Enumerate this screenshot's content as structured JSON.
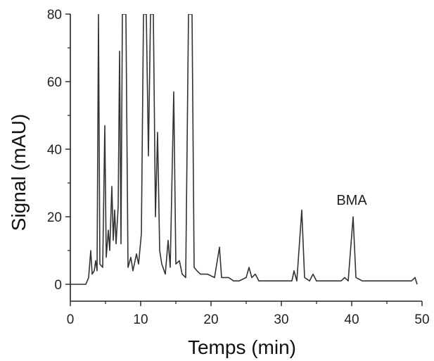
{
  "chart_data": {
    "type": "line",
    "title": "",
    "xlabel": "Temps (min)",
    "ylabel": "Signal (mAU)",
    "xlim": [
      0,
      50
    ],
    "ylim": [
      -5,
      80
    ],
    "x_ticks": [
      0,
      10,
      20,
      30,
      40,
      50
    ],
    "y_ticks": [
      0,
      20,
      40,
      60,
      80
    ],
    "grid": false,
    "legend": "none",
    "line_color": "#333333",
    "annotations": [
      {
        "text": "BMA",
        "x": 40.0,
        "y": 23.5
      }
    ],
    "series": [
      {
        "points": [
          [
            0,
            0
          ],
          [
            2.2,
            0
          ],
          [
            2.6,
            2
          ],
          [
            2.9,
            10
          ],
          [
            3.1,
            3
          ],
          [
            3.4,
            4
          ],
          [
            3.6,
            7
          ],
          [
            3.8,
            4
          ],
          [
            4.0,
            80
          ],
          [
            4.2,
            6
          ],
          [
            4.6,
            5
          ],
          [
            4.9,
            47
          ],
          [
            5.1,
            8
          ],
          [
            5.4,
            16
          ],
          [
            5.6,
            10
          ],
          [
            5.9,
            29
          ],
          [
            6.1,
            13
          ],
          [
            6.3,
            22
          ],
          [
            6.5,
            12
          ],
          [
            6.8,
            23
          ],
          [
            7.0,
            69
          ],
          [
            7.2,
            12
          ],
          [
            7.4,
            80
          ],
          [
            7.9,
            80
          ],
          [
            8.2,
            5
          ],
          [
            8.6,
            8
          ],
          [
            8.9,
            4
          ],
          [
            9.4,
            9
          ],
          [
            9.7,
            6
          ],
          [
            10.1,
            15
          ],
          [
            10.4,
            80
          ],
          [
            10.8,
            80
          ],
          [
            11.1,
            38
          ],
          [
            11.4,
            80
          ],
          [
            11.8,
            80
          ],
          [
            12.1,
            20
          ],
          [
            12.4,
            45
          ],
          [
            12.7,
            10
          ],
          [
            13.0,
            6
          ],
          [
            13.5,
            3
          ],
          [
            13.9,
            13
          ],
          [
            14.2,
            5
          ],
          [
            14.7,
            57
          ],
          [
            15.0,
            6
          ],
          [
            15.5,
            7
          ],
          [
            15.9,
            3
          ],
          [
            16.4,
            2
          ],
          [
            16.8,
            80
          ],
          [
            17.3,
            80
          ],
          [
            17.6,
            5
          ],
          [
            18.0,
            4
          ],
          [
            18.5,
            3
          ],
          [
            19.5,
            3
          ],
          [
            20.5,
            2
          ],
          [
            21.2,
            11
          ],
          [
            21.5,
            2
          ],
          [
            22.5,
            2
          ],
          [
            23.2,
            1
          ],
          [
            24.0,
            1
          ],
          [
            25.0,
            2
          ],
          [
            25.4,
            5
          ],
          [
            25.8,
            2
          ],
          [
            26.3,
            3
          ],
          [
            26.8,
            1
          ],
          [
            28.0,
            1
          ],
          [
            30.0,
            1
          ],
          [
            31.5,
            1
          ],
          [
            31.8,
            4
          ],
          [
            32.2,
            1
          ],
          [
            32.9,
            22
          ],
          [
            33.3,
            2
          ],
          [
            34.0,
            1
          ],
          [
            34.5,
            3
          ],
          [
            35.0,
            1
          ],
          [
            36.5,
            1
          ],
          [
            37.5,
            1
          ],
          [
            38.5,
            1
          ],
          [
            39.0,
            2
          ],
          [
            39.5,
            1
          ],
          [
            40.2,
            20
          ],
          [
            40.6,
            2
          ],
          [
            41.5,
            1
          ],
          [
            44.0,
            1
          ],
          [
            46.0,
            1
          ],
          [
            48.5,
            1
          ],
          [
            49.0,
            2
          ],
          [
            49.3,
            0
          ]
        ]
      }
    ]
  }
}
